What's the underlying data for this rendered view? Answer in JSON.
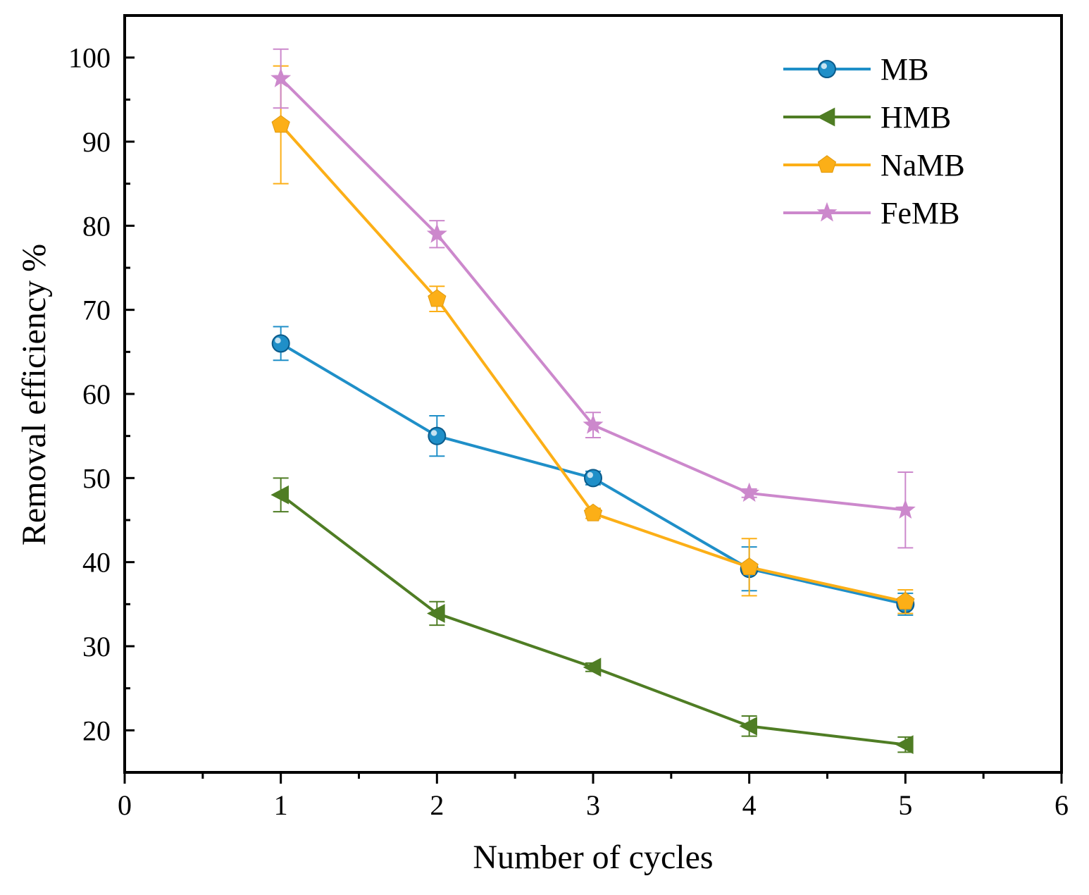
{
  "chart_data": {
    "type": "line",
    "title": "",
    "xlabel": "Number of cycles",
    "ylabel": "Removal efficiency %",
    "xlim": [
      0,
      6
    ],
    "ylim": [
      15,
      105
    ],
    "xticks": [
      0,
      1,
      2,
      3,
      4,
      5,
      6
    ],
    "yticks": [
      20,
      30,
      40,
      50,
      60,
      70,
      80,
      90,
      100
    ],
    "xtick_labels": [
      "0",
      "1",
      "2",
      "3",
      "4",
      "5",
      "6"
    ],
    "ytick_labels": [
      "20",
      "30",
      "40",
      "50",
      "60",
      "70",
      "80",
      "90",
      "100"
    ],
    "grid": false,
    "legend_position": "top-right",
    "x": [
      1,
      2,
      3,
      4,
      5
    ],
    "series": [
      {
        "name": "MB",
        "color": "#1f8fc8",
        "marker": "circle",
        "values": [
          66.0,
          55.0,
          50.0,
          39.2,
          35.0
        ],
        "errors": [
          2.0,
          2.4,
          0.8,
          2.6,
          1.3
        ]
      },
      {
        "name": "HMB",
        "color": "#4f7d24",
        "marker": "triangle-left",
        "values": [
          48.0,
          33.9,
          27.5,
          20.5,
          18.3
        ],
        "errors": [
          2.0,
          1.4,
          0.5,
          1.2,
          0.9
        ]
      },
      {
        "name": "NaMB",
        "color": "#fcaf17",
        "marker": "pentagon",
        "values": [
          92.0,
          71.3,
          45.8,
          39.4,
          35.3
        ],
        "errors": [
          7.0,
          1.5,
          0.6,
          3.4,
          1.4
        ]
      },
      {
        "name": "FeMB",
        "color": "#cc88cc",
        "marker": "star",
        "values": [
          97.5,
          79.0,
          56.3,
          48.2,
          46.2
        ],
        "errors": [
          3.5,
          1.6,
          1.5,
          0.5,
          4.5
        ]
      }
    ]
  }
}
